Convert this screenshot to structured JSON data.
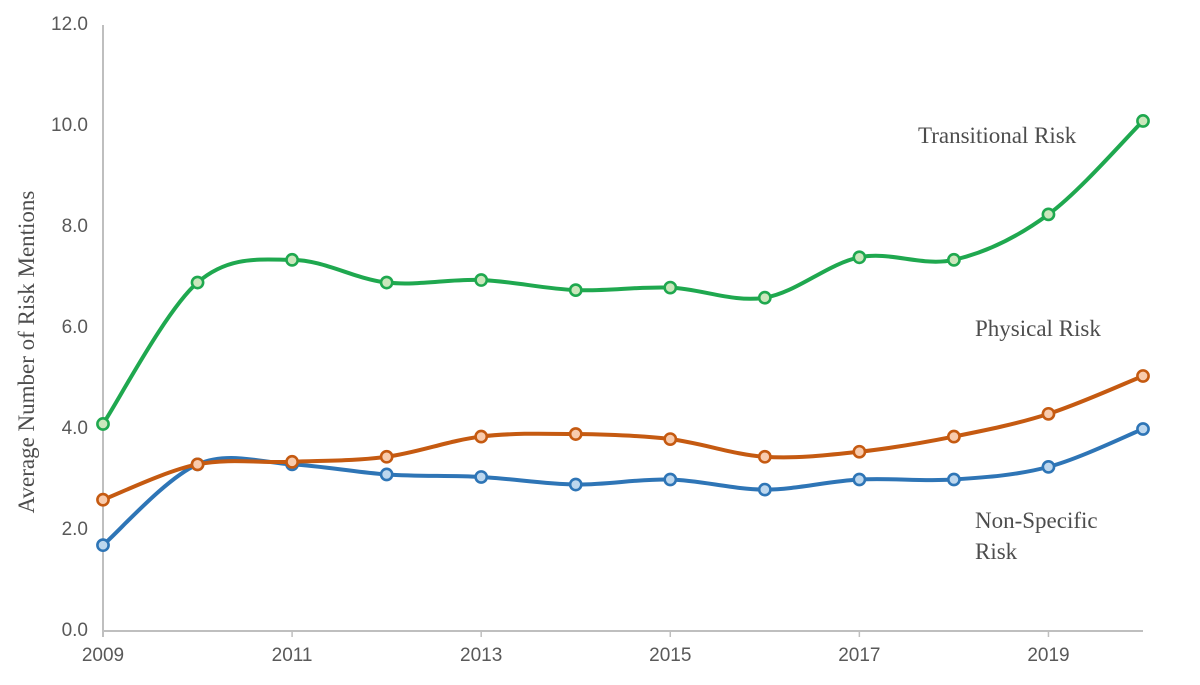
{
  "labels": {
    "transitional": "Transitional Risk",
    "physical": "Physical Risk",
    "nonspecific_line1": "Non-Specific",
    "nonspecific_line2": "Risk"
  },
  "chart_data": {
    "type": "line",
    "title": "",
    "xlabel": "",
    "ylabel": "Average Number of Risk Mentions",
    "x": [
      2009,
      2010,
      2011,
      2012,
      2013,
      2014,
      2015,
      2016,
      2017,
      2018,
      2019,
      2020
    ],
    "series": [
      {
        "name": "Non-Specific Risk",
        "color": "#2E75B6",
        "marker_fill": "#BDD7EE",
        "values": [
          1.7,
          3.3,
          3.3,
          3.1,
          3.05,
          2.9,
          3.0,
          2.8,
          3.0,
          3.0,
          3.25,
          4.0
        ]
      },
      {
        "name": "Physical Risk",
        "color": "#C55A11",
        "marker_fill": "#F8CBAD",
        "values": [
          2.6,
          3.3,
          3.35,
          3.45,
          3.85,
          3.9,
          3.8,
          3.45,
          3.55,
          3.85,
          4.3,
          5.05
        ]
      },
      {
        "name": "Transitional Risk",
        "color": "#1FA84F",
        "marker_fill": "#CBE7BC",
        "values": [
          4.1,
          6.9,
          7.35,
          6.9,
          6.95,
          6.75,
          6.8,
          6.6,
          7.4,
          7.35,
          8.25,
          10.1
        ]
      }
    ],
    "ylim": [
      0,
      12
    ],
    "ytick_labels": [
      "0.0",
      "2.0",
      "4.0",
      "6.0",
      "8.0",
      "10.0",
      "12.0"
    ],
    "xtick_labels": [
      "2009",
      "2011",
      "2013",
      "2015",
      "2017",
      "2019"
    ],
    "grid": false,
    "legend": "inline-text-labels",
    "line_style": "smooth",
    "axis_color": "#BFBFBF",
    "tick_text_color": "#595959",
    "annotation_text_color": "#4D4D4D"
  }
}
